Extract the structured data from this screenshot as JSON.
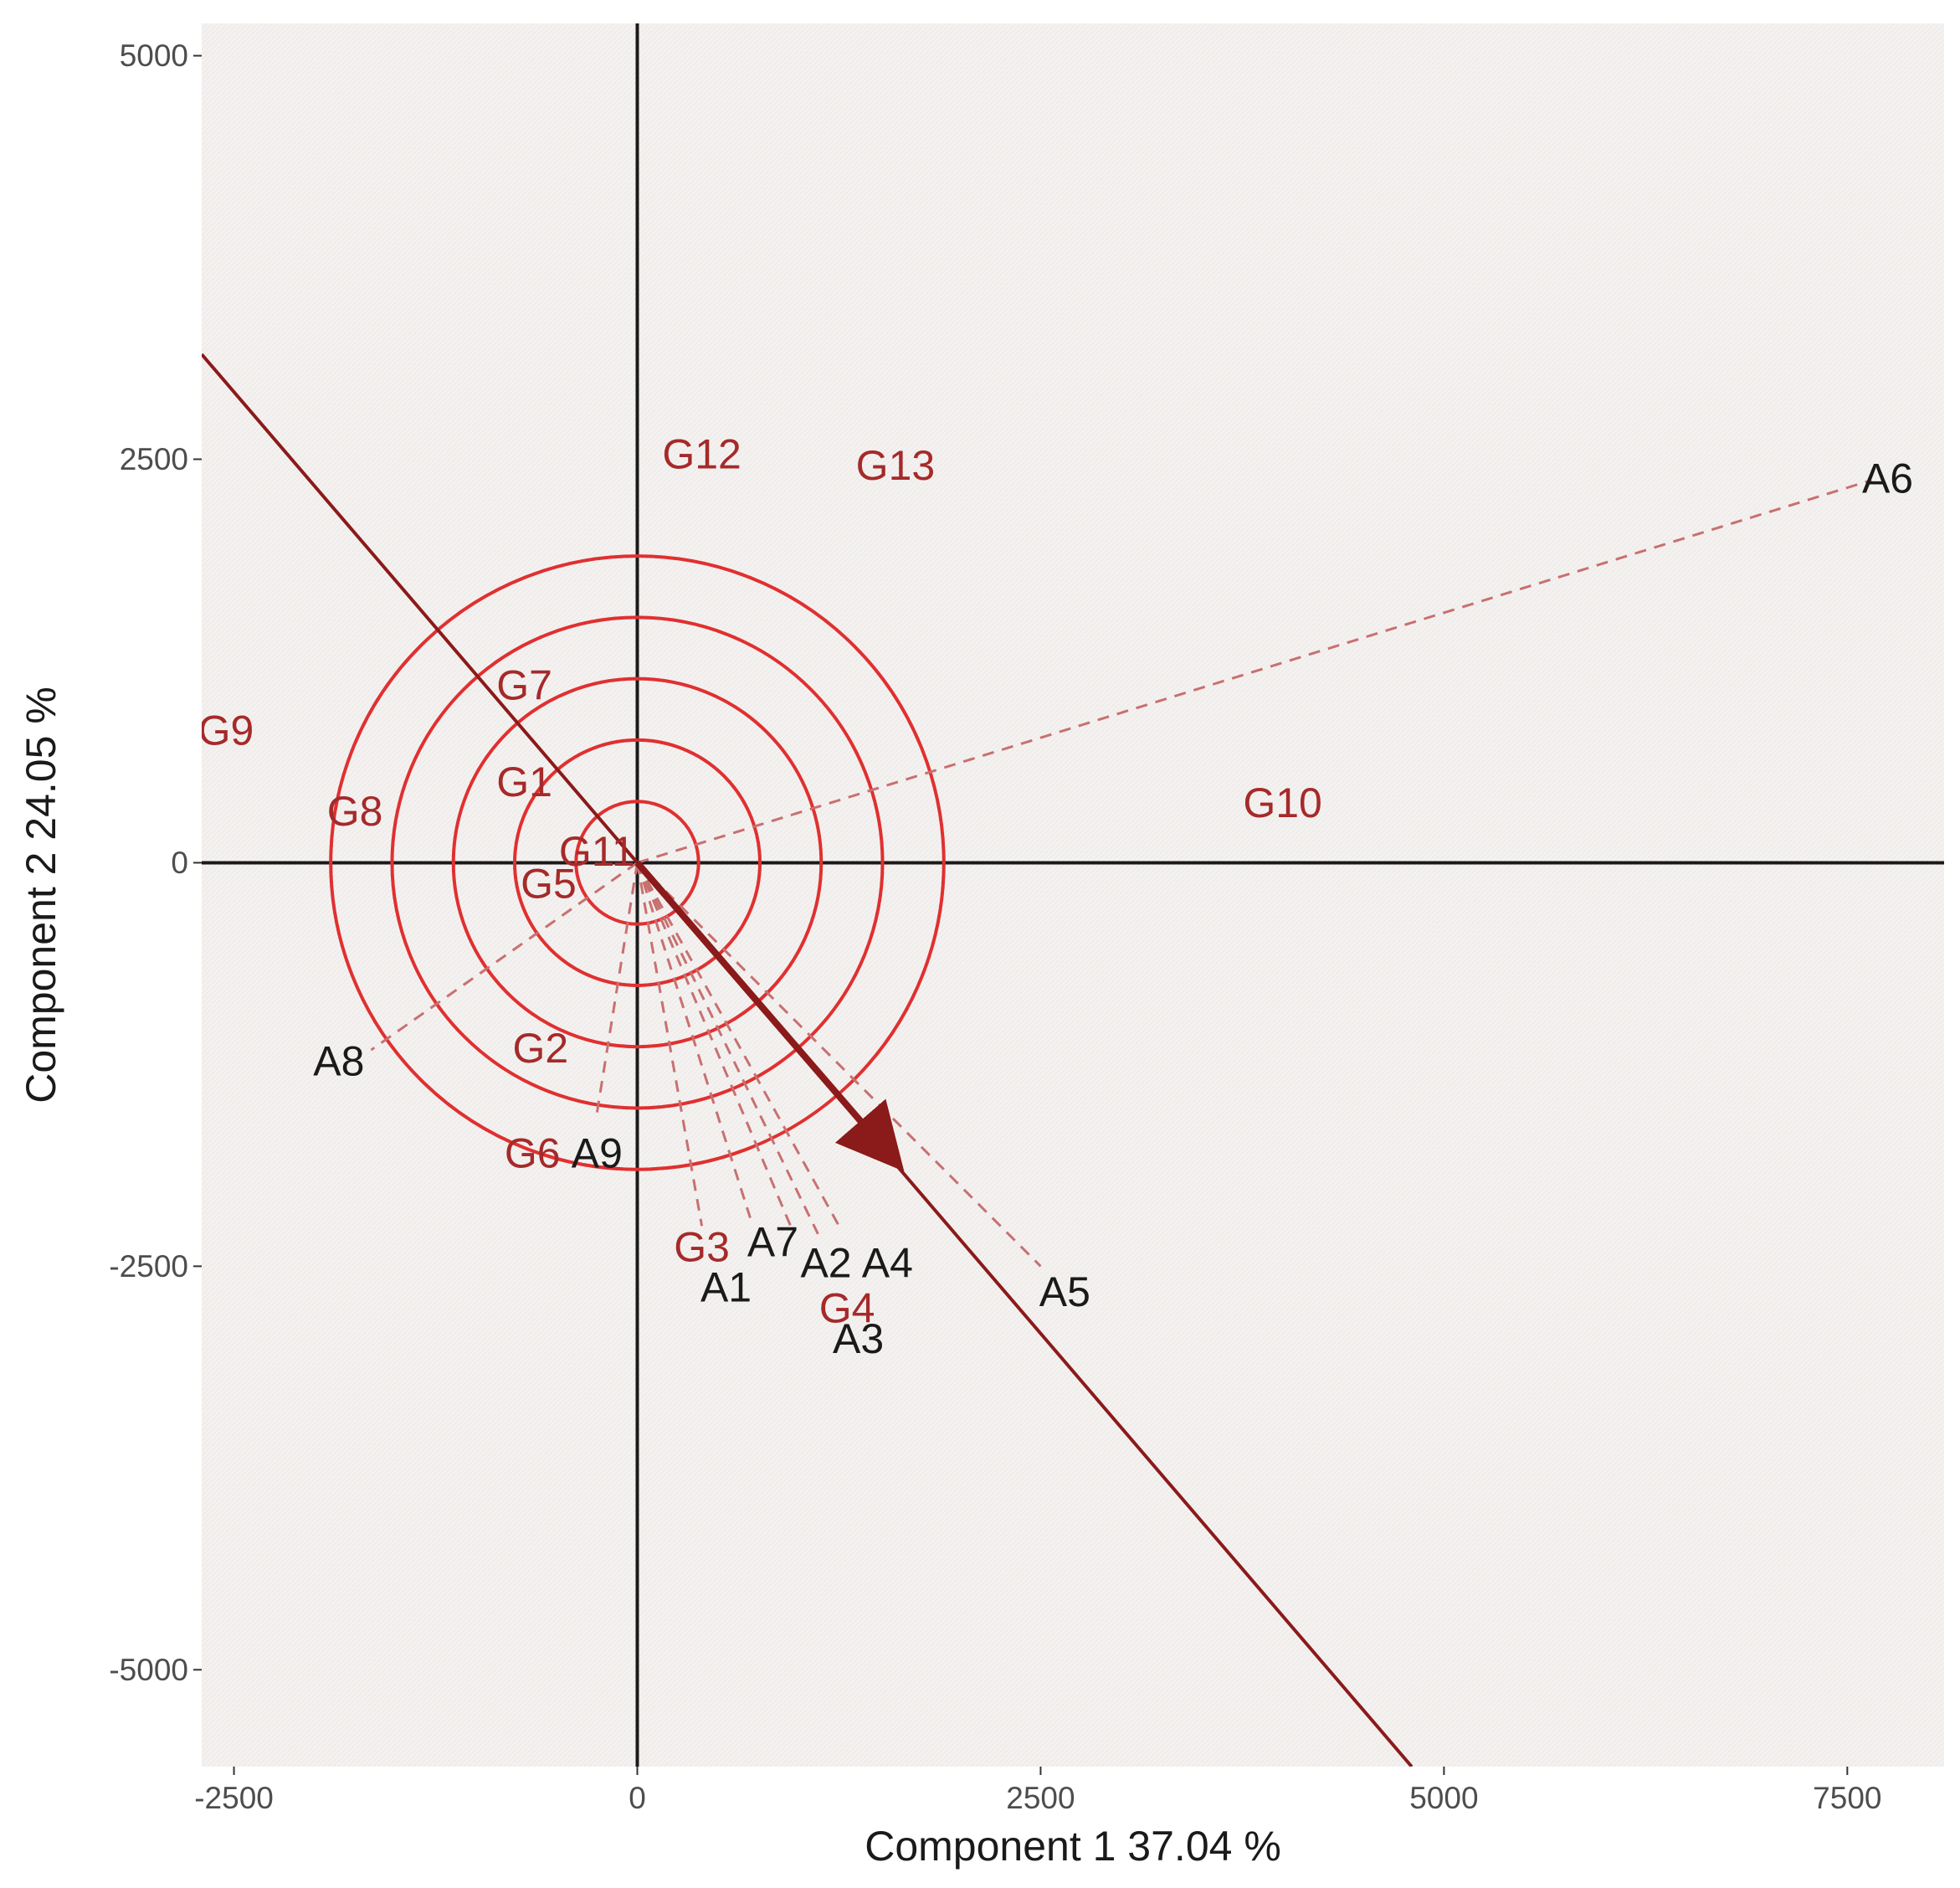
{
  "chart_data": {
    "type": "scatter",
    "title": "",
    "xlabel": "Component 1 37.04 %",
    "ylabel": "Component 2 24.05 %",
    "xlim": [
      -2700,
      8100
    ],
    "ylim": [
      -5600,
      5200
    ],
    "x_ticks": [
      {
        "value": -2500,
        "label": "-2500"
      },
      {
        "value": 0,
        "label": "0"
      },
      {
        "value": 2500,
        "label": "2500"
      },
      {
        "value": 5000,
        "label": "5000"
      },
      {
        "value": 7500,
        "label": "7500"
      }
    ],
    "y_ticks": [
      {
        "value": 5000,
        "label": "5000"
      },
      {
        "value": 2500,
        "label": "2500"
      },
      {
        "value": 0,
        "label": "0"
      },
      {
        "value": -2500,
        "label": "-2500"
      },
      {
        "value": -5000,
        "label": "-5000"
      }
    ],
    "grid": false,
    "colors": {
      "panel": "#f4f2f1",
      "genotype": "#a52a2a",
      "environment": "#1a1a1a",
      "circle": "#e03030",
      "axis_line": "#1a1a1a",
      "ideal_line": "#8b1a1a",
      "dashed": "#c87070"
    },
    "ideal_line": {
      "from": [
        -2700,
        3150
      ],
      "to": [
        4800,
        -5600
      ],
      "arrow_from": [
        0,
        0
      ],
      "arrow_to": [
        1600,
        -1850
      ]
    },
    "concentric_circles": {
      "center": [
        0,
        0
      ],
      "radii": [
        380,
        760,
        1140,
        1520,
        1900
      ]
    },
    "genotypes": [
      {
        "label": "G1",
        "x": -700,
        "y": 500
      },
      {
        "label": "G2",
        "x": -600,
        "y": -1150
      },
      {
        "label": "G3",
        "x": 400,
        "y": -2380
      },
      {
        "label": "G4",
        "x": 1300,
        "y": -2760
      },
      {
        "label": "G5",
        "x": -550,
        "y": -130
      },
      {
        "label": "G6",
        "x": -650,
        "y": -1800
      },
      {
        "label": "G7",
        "x": -700,
        "y": 1100
      },
      {
        "label": "G8",
        "x": -1750,
        "y": 320
      },
      {
        "label": "G9",
        "x": -2550,
        "y": 820
      },
      {
        "label": "G10",
        "x": 4000,
        "y": 370
      },
      {
        "label": "G11",
        "x": -250,
        "y": 70
      },
      {
        "label": "G12",
        "x": 400,
        "y": 2530
      },
      {
        "label": "G13",
        "x": 1600,
        "y": 2460
      }
    ],
    "environments": [
      {
        "label": "A1",
        "x": 550,
        "y": -2630
      },
      {
        "label": "A2",
        "x": 1170,
        "y": -2480
      },
      {
        "label": "A3",
        "x": 1370,
        "y": -2950
      },
      {
        "label": "A4",
        "x": 1550,
        "y": -2480
      },
      {
        "label": "A5",
        "x": 2650,
        "y": -2660
      },
      {
        "label": "A6",
        "x": 7750,
        "y": 2380
      },
      {
        "label": "A7",
        "x": 840,
        "y": -2350
      },
      {
        "label": "A8",
        "x": -1850,
        "y": -1230
      },
      {
        "label": "A9",
        "x": -250,
        "y": -1800
      }
    ],
    "environment_vectors": [
      {
        "label": "A1",
        "x": 400,
        "y": -2250
      },
      {
        "label": "A2",
        "x": 950,
        "y": -2250
      },
      {
        "label": "A3",
        "x": 1120,
        "y": -2300
      },
      {
        "label": "A4",
        "x": 1250,
        "y": -2250
      },
      {
        "label": "A5",
        "x": 2500,
        "y": -2500
      },
      {
        "label": "A6",
        "x": 7650,
        "y": 2370
      },
      {
        "label": "A7",
        "x": 700,
        "y": -2200
      },
      {
        "label": "A8",
        "x": -1650,
        "y": -1160
      },
      {
        "label": "A9",
        "x": -250,
        "y": -1550
      }
    ]
  }
}
